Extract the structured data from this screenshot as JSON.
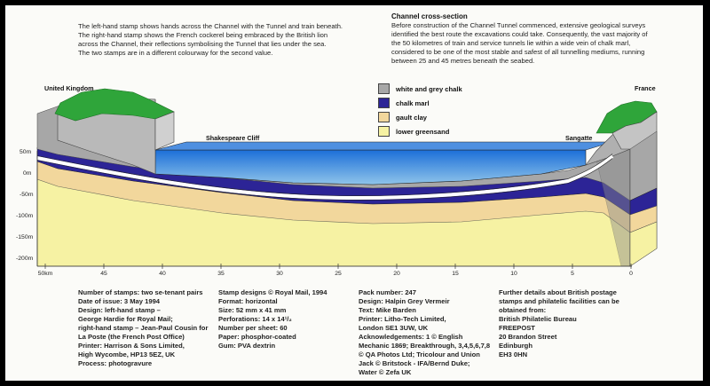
{
  "intro": {
    "paragraphs": [
      "The left-hand stamp shows hands across the Channel with the Tunnel and train beneath. The right-hand stamp shows the French cockerel being embraced by the British lion across the Channel, their reflections symbolising the Tunnel that lies under the sea.",
      "The two stamps are in a different colourway for the second value."
    ]
  },
  "cross_section": {
    "heading": "Channel cross-section",
    "text": "Before construction of the Channel Tunnel commenced, extensive geological surveys identified the best route the excavations could take. Consequently, the vast majority of the 50 kilometres of train and service tunnels lie within a wide vein of chalk marl, considered to be one of the most stable and safest of all tunnelling mediums, running between 25 and 45 metres beneath the seabed."
  },
  "places": {
    "uk": "United Kingdom",
    "france": "France",
    "shakespeare": "Shakespeare Cliff",
    "sangatte": "Sangatte"
  },
  "legend": [
    {
      "label": "white and grey chalk",
      "color": "#a7a7a7"
    },
    {
      "label": "chalk marl",
      "color": "#2c2496"
    },
    {
      "label": "gault clay",
      "color": "#f2d79c"
    },
    {
      "label": "lower greensand",
      "color": "#f6f2a3"
    }
  ],
  "y_axis": [
    "50m",
    "0m",
    "-50m",
    "-100m",
    "-150m",
    "-200m"
  ],
  "x_axis": [
    "50km",
    "45",
    "40",
    "35",
    "30",
    "25",
    "20",
    "15",
    "10",
    "5",
    "0"
  ],
  "colors": {
    "land": "#2fa53a",
    "sea_top": "#1c6fd8",
    "sea_bottom": "#8fc4ea",
    "tunnel": "#ffffff",
    "grey_chalk": "#a7a7a7",
    "chalk_marl": "#2c2496",
    "gault_clay": "#f2d79c",
    "lower_greensand": "#f6f2a3"
  },
  "details": {
    "col1": [
      "Number of stamps: two se-tenant pairs",
      "Date of issue: 3 May 1994",
      "Design: left-hand stamp –",
      "George Hardie for Royal Mail;",
      "right-hand stamp – Jean-Paul Cousin for",
      "La Poste (the French Post Office)",
      "Printer: Harrison & Sons Limited,",
      "High Wycombe, HP13 5EZ, UK",
      "Process: photogravure"
    ],
    "col2": [
      "Stamp designs © Royal Mail, 1994",
      "Format: horizontal",
      "Size: 52 mm x 41 mm",
      "Perforations: 14 x 14¹/₂",
      "Number per sheet: 60",
      "Paper: phosphor-coated",
      "Gum: PVA dextrin"
    ],
    "col3": [
      "Pack number: 247",
      "Design: Halpin Grey Vermeir",
      "Text: Mike Barden",
      "Printer: Litho-Tech Limited,",
      "London SE1 3UW, UK",
      "Acknowledgements: 1 © English",
      "Mechanic 1869; Breakthrough, 3,4,5,6,7,8",
      "© QA Photos Ltd; Tricolour and Union",
      "Jack © Britstock - IFA/Bernd Duke;",
      "Water © Zefa UK"
    ],
    "col4": [
      "Further details about British postage",
      "stamps and philatelic facilities can be",
      "obtained from:",
      "British Philatelic Bureau",
      "FREEPOST",
      "20 Brandon Street",
      "Edinburgh",
      "EH3 0HN"
    ]
  }
}
